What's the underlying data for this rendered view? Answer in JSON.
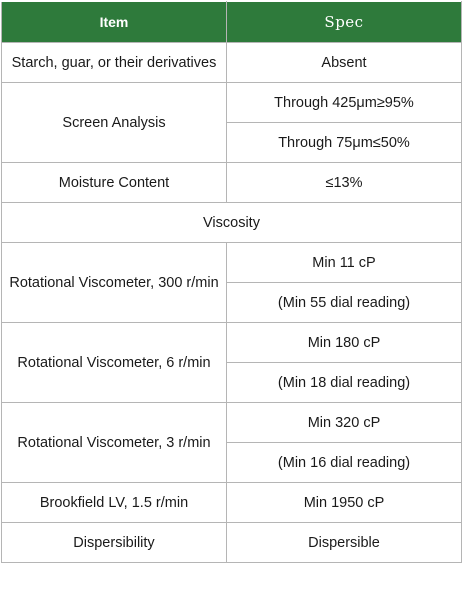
{
  "header": {
    "item": "Item",
    "spec": "Spec"
  },
  "rows": {
    "starch": {
      "item": "Starch, guar, or their derivatives",
      "spec": "Absent"
    },
    "screen": {
      "item": "Screen Analysis",
      "spec1": "Through 425μm≥95%",
      "spec2": "Through 75μm≤50%"
    },
    "moisture": {
      "item": "Moisture Content",
      "spec": "≤13%"
    },
    "viscosity_heading": "Viscosity",
    "rot300": {
      "item": "Rotational Viscometer, 300 r/min",
      "spec1": "Min 11 cP",
      "spec2": "(Min 55 dial reading)"
    },
    "rot6": {
      "item": "Rotational Viscometer, 6 r/min",
      "spec1": "Min 180 cP",
      "spec2": "(Min 18 dial reading)"
    },
    "rot3": {
      "item": "Rotational Viscometer, 3 r/min",
      "spec1": "Min 320 cP",
      "spec2": "(Min 16 dial reading)"
    },
    "brookfield": {
      "item": "Brookfield LV, 1.5 r/min",
      "spec": "Min 1950 cP"
    },
    "dispersibility": {
      "item": "Dispersibility",
      "spec": "Dispersible"
    }
  },
  "colors": {
    "header_bg": "#2e7a3b",
    "header_text": "#ffffff",
    "border": "#b5b5b5"
  }
}
